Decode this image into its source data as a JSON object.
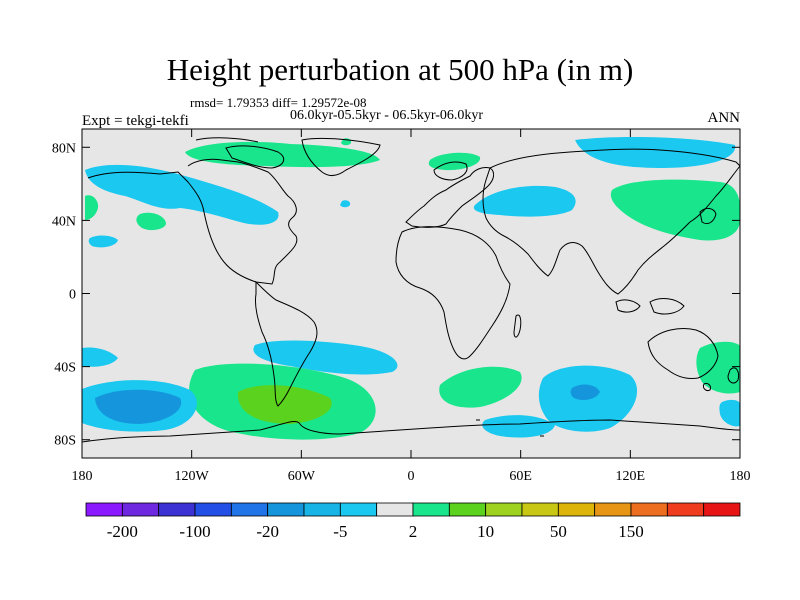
{
  "title": "Height perturbation at 500 hPa (in m)",
  "stats_text": "rmsd= 1.79353 diff= 1.29572e-08",
  "period_text": "06.0kyr-05.5kyr - 06.5kyr-06.0kyr",
  "left_label": "Expt = tekgi-tekfi",
  "right_label": "ANN",
  "map": {
    "background": "#e6e6e6",
    "lat_ticks": [
      {
        "value": 80,
        "label": "80N"
      },
      {
        "value": 40,
        "label": "40N"
      },
      {
        "value": 0,
        "label": "0"
      },
      {
        "value": -40,
        "label": "40S"
      },
      {
        "value": -80,
        "label": "80S"
      }
    ],
    "lon_ticks": [
      {
        "value": -180,
        "label": "180"
      },
      {
        "value": -120,
        "label": "120W"
      },
      {
        "value": -60,
        "label": "60W"
      },
      {
        "value": 0,
        "label": "0"
      },
      {
        "value": 60,
        "label": "60E"
      },
      {
        "value": 120,
        "label": "120E"
      },
      {
        "value": 180,
        "label": "180"
      }
    ],
    "lon_range": [
      -180,
      180
    ],
    "lat_range": [
      -90,
      90
    ]
  },
  "colorbar": {
    "colors": [
      "#8c1aff",
      "#6d28e0",
      "#3c32d4",
      "#2250e6",
      "#2173e8",
      "#1596dc",
      "#18b4e6",
      "#1ac8f0",
      "#e6e6e6",
      "#19e68c",
      "#5ad21e",
      "#9ed21e",
      "#c8c814",
      "#dcb40a",
      "#e69614",
      "#ec6e1e",
      "#f03c1e",
      "#e61414"
    ],
    "labels": [
      {
        "text": "-200",
        "boundary": 1
      },
      {
        "text": "-100",
        "boundary": 3
      },
      {
        "text": "-20",
        "boundary": 5
      },
      {
        "text": "-5",
        "boundary": 7
      },
      {
        "text": "2",
        "boundary": 9
      },
      {
        "text": "10",
        "boundary": 11
      },
      {
        "text": "50",
        "boundary": 13
      },
      {
        "text": "150",
        "boundary": 15
      }
    ]
  }
}
